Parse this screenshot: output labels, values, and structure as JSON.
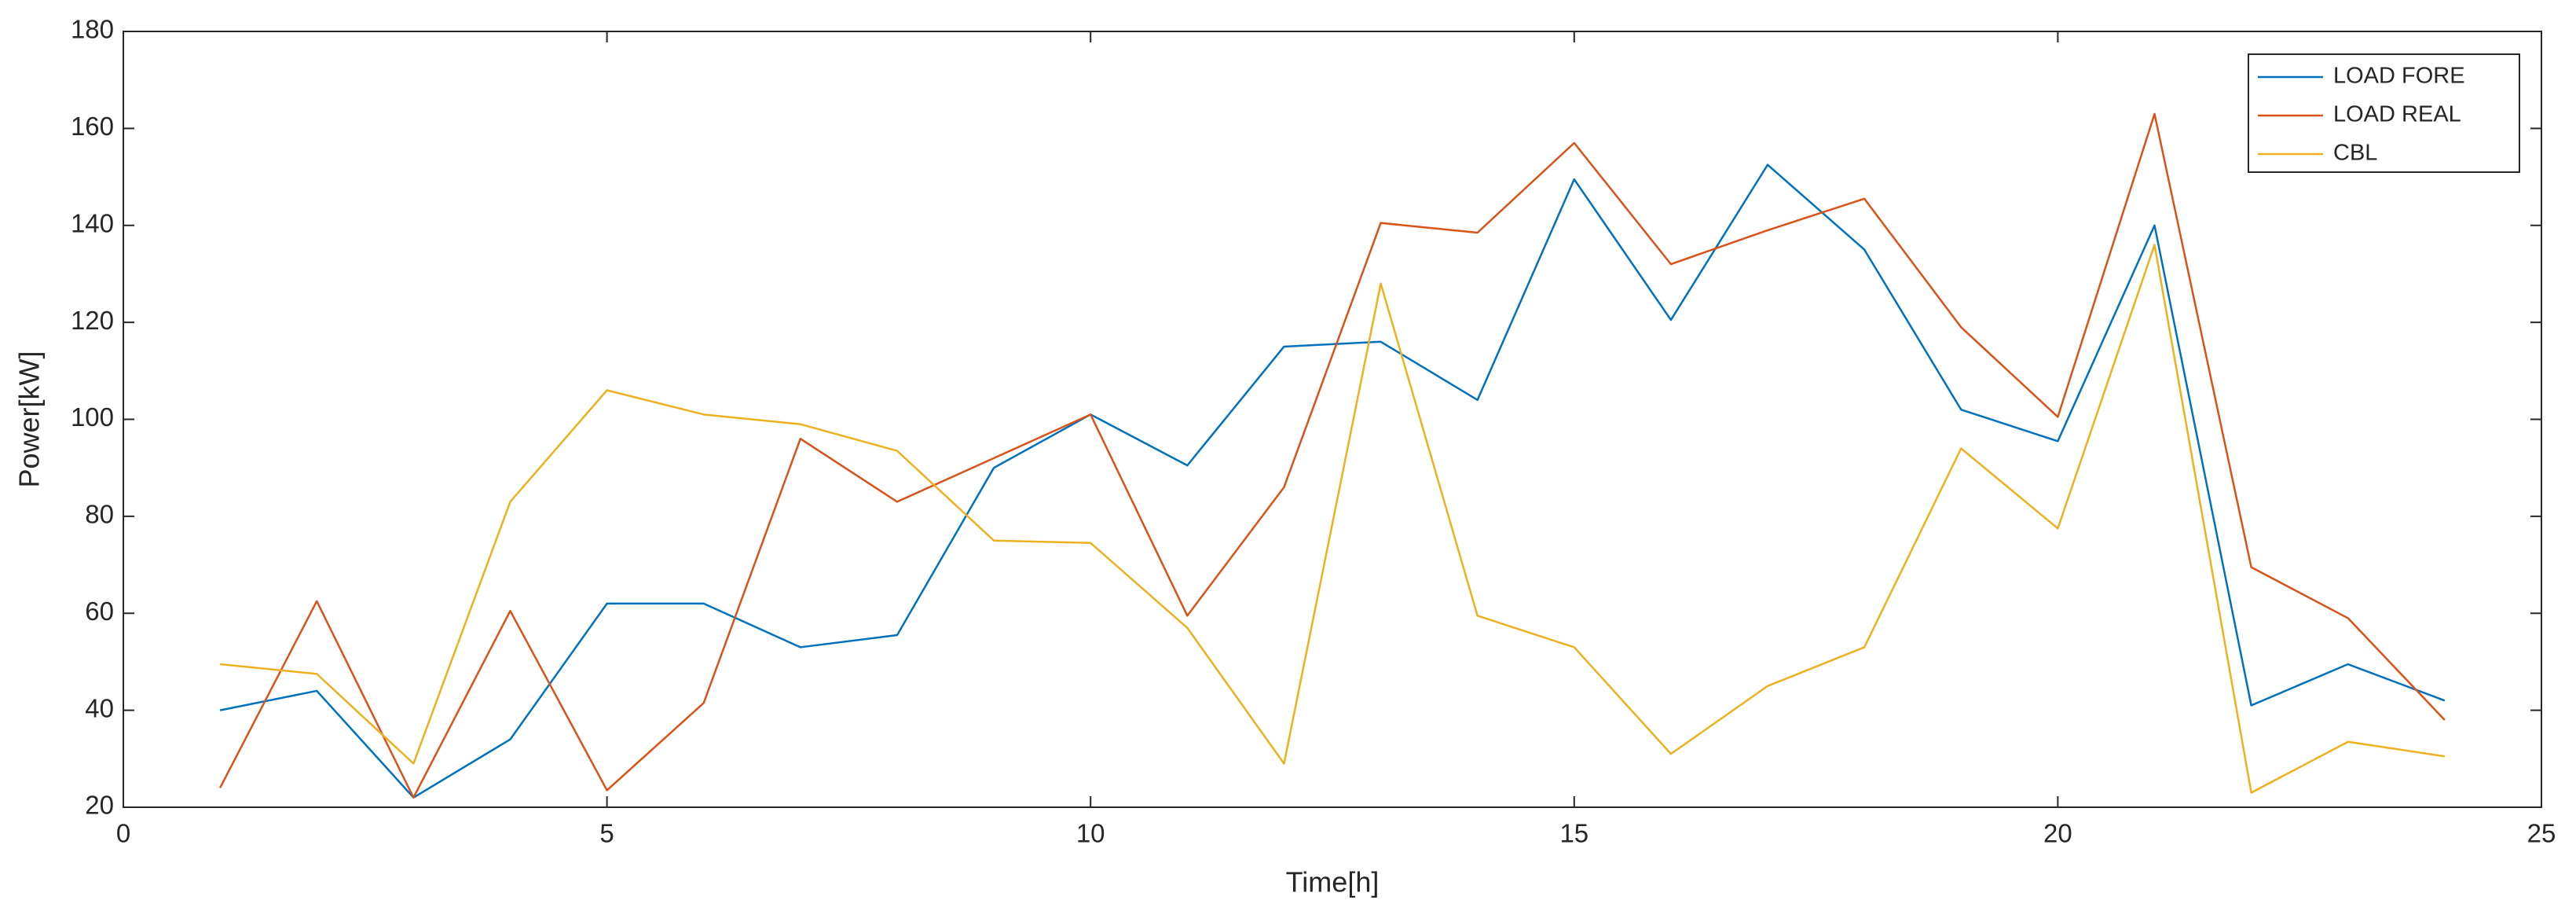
{
  "chart_data": {
    "type": "line",
    "x_label": "Time[h]",
    "y_label": "Power[kW]",
    "x": [
      1,
      2,
      3,
      4,
      5,
      6,
      7,
      8,
      9,
      10,
      11,
      12,
      13,
      14,
      15,
      16,
      17,
      18,
      19,
      20,
      21,
      22,
      23,
      24
    ],
    "series": [
      {
        "name": "LOAD FORE",
        "color": "#0072BD",
        "values": [
          40,
          44,
          22,
          34,
          62,
          62,
          53,
          55.5,
          90,
          101,
          90.5,
          115,
          116,
          104,
          149.5,
          120.5,
          152.5,
          135,
          102,
          95.5,
          140,
          41,
          49.5,
          42
        ]
      },
      {
        "name": "LOAD REAL",
        "color": "#D95319",
        "values": [
          24,
          62.5,
          22,
          60.5,
          23.5,
          41.5,
          96,
          83,
          92,
          101,
          59.5,
          86,
          140.5,
          138.5,
          157,
          132,
          139,
          145.5,
          119,
          100.5,
          163,
          69.5,
          59,
          38
        ]
      },
      {
        "name": "CBL",
        "color": "#EDB120",
        "values": [
          49.5,
          47.5,
          29,
          83,
          106,
          101,
          99,
          93.5,
          75,
          74.5,
          57,
          29,
          128,
          59.5,
          53,
          31,
          45,
          53,
          94,
          77.5,
          136,
          23,
          33.5,
          30.5
        ]
      }
    ],
    "xlim": [
      0,
      25
    ],
    "xticks": [
      0,
      5,
      10,
      15,
      20,
      25
    ],
    "ylim": [
      20,
      180
    ],
    "yticks": [
      20,
      40,
      60,
      80,
      100,
      120,
      140,
      160,
      180
    ],
    "legend": "top-right"
  }
}
